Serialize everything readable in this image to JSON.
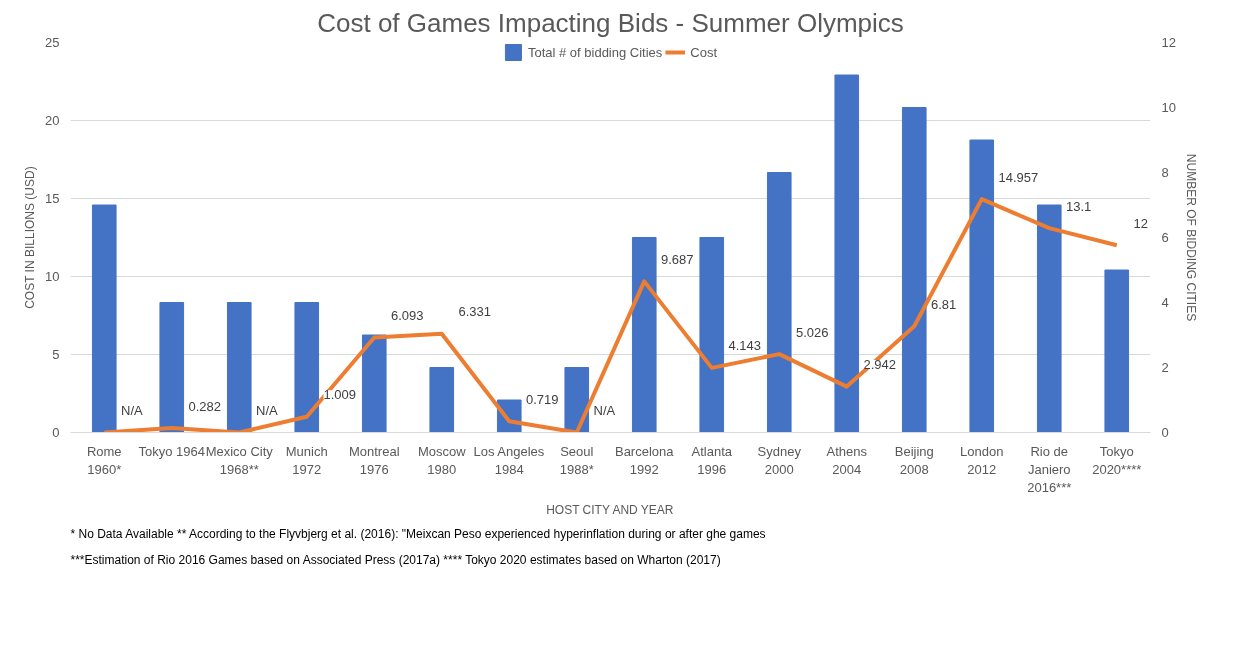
{
  "chart_data": {
    "type": "bar",
    "title": "Cost of Games Impacting Bids - Summer Olympics",
    "xlabel": "HOST CITY AND YEAR",
    "ylabel": "COST IN BILLIONS (USD)",
    "y2label": "NUMBER OF BIDDING CITIES",
    "categories": [
      "Rome\n1960*",
      "Tokyo 1964",
      "Mexico City\n1968**",
      "Munich\n1972",
      "Montreal\n1976",
      "Moscow\n1980",
      "Los Angeles\n1984",
      "Seoul\n1988*",
      "Barcelona\n1992",
      "Atlanta\n1996",
      "Sydney\n2000",
      "Athens\n2004",
      "Beijing\n2008",
      "London\n2012",
      "Rio de\nJaniero\n2016***",
      "Tokyo\n2020****"
    ],
    "series": [
      {
        "name": "Total # of bidding Cities",
        "type": "bar",
        "axis": "y2",
        "color": "#4472c4",
        "values": [
          7,
          4,
          4,
          4,
          3,
          2,
          1,
          2,
          6,
          6,
          8,
          11,
          10,
          9,
          7,
          5
        ]
      },
      {
        "name": "Cost",
        "type": "line",
        "color": "#ed7d31",
        "values": [
          0,
          0.282,
          0,
          1.009,
          6.093,
          6.331,
          0.719,
          0,
          9.687,
          4.143,
          5.026,
          2.942,
          6.81,
          14.957,
          13.1,
          12
        ],
        "value_labels": [
          "N/A",
          "0.282",
          "N/A",
          "1.009",
          "6.093",
          "6.331",
          "0.719",
          "N/A",
          "9.687",
          "4.143",
          "5.026",
          "2.942",
          "6.81",
          "14.957",
          "13.1",
          "12"
        ]
      }
    ],
    "ylim": [
      0,
      25
    ],
    "yticks": [
      0,
      5,
      10,
      15,
      20,
      25
    ],
    "y2lim": [
      0,
      12
    ],
    "y2ticks": [
      0,
      2,
      4,
      6,
      8,
      10,
      12
    ],
    "grid": "y",
    "legend": "top",
    "line_style": "solid",
    "marker": "none",
    "annotations": [
      "* No Data Available    ** According to the Flyvbjerg et al. (2016): \"Meixcan Peso experienced hyperinflation during or after ghe games",
      "***Estimation of  Rio 2016 Games based on Associated Press (2017a)    **** Tokyo 2020 estimates based on Wharton (2017)"
    ]
  }
}
